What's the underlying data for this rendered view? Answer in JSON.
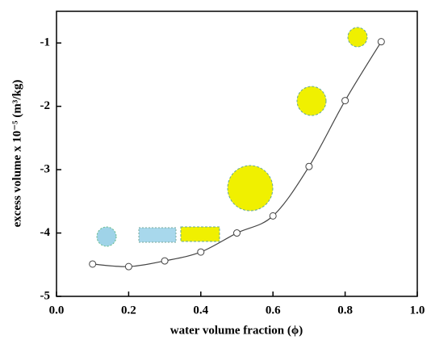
{
  "chart_data": {
    "type": "line",
    "x_label": "water volume fraction (ϕ)",
    "y_label": "excess volume x 10⁻⁵ (m³/kg)",
    "series": [
      {
        "color": "#444444",
        "x": [
          0.1,
          0.2,
          0.3,
          0.4,
          0.5,
          0.6,
          0.7,
          0.8,
          0.9
        ],
        "values": [
          -4.49,
          -4.53,
          -4.44,
          -4.3,
          -4.0,
          -3.73,
          -2.95,
          -1.91,
          -0.98
        ]
      }
    ],
    "xlim": [
      0.0,
      1.0
    ],
    "xticks": [
      {
        "value": 0.0,
        "label": "0.0"
      },
      {
        "value": 0.2,
        "label": "0.2"
      },
      {
        "value": 0.4,
        "label": "0.4"
      },
      {
        "value": 0.6,
        "label": "0.6"
      },
      {
        "value": 0.8,
        "label": "0.8"
      },
      {
        "value": 1.0,
        "label": "1.0"
      }
    ],
    "ylim": [
      -5,
      -0.5
    ],
    "yticks": [
      -5,
      -4,
      -3,
      -2,
      -1
    ]
  }
}
